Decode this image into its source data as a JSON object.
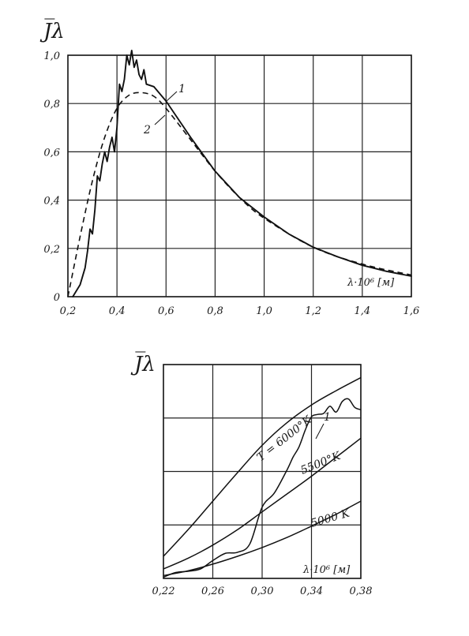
{
  "chart_data": [
    {
      "type": "line",
      "ylabel": "J̅λ",
      "xlabel": "λ·10⁶ [м]",
      "xlim": [
        0.2,
        1.6
      ],
      "ylim": [
        0,
        1.0
      ],
      "x_ticks": [
        "0,2",
        "0,4",
        "0,6",
        "0,8",
        "1,0",
        "1,2",
        "1,4",
        "1,6"
      ],
      "y_ticks": [
        "0",
        "0,2",
        "0,4",
        "0,6",
        "0,8",
        "1,0"
      ],
      "grid": true,
      "series": [
        {
          "name": "1",
          "style": "solid",
          "points": [
            [
              0.22,
              0.0
            ],
            [
              0.25,
              0.05
            ],
            [
              0.27,
              0.12
            ],
            [
              0.28,
              0.19
            ],
            [
              0.29,
              0.28
            ],
            [
              0.3,
              0.26
            ],
            [
              0.31,
              0.36
            ],
            [
              0.32,
              0.5
            ],
            [
              0.33,
              0.48
            ],
            [
              0.34,
              0.55
            ],
            [
              0.35,
              0.6
            ],
            [
              0.36,
              0.56
            ],
            [
              0.37,
              0.62
            ],
            [
              0.38,
              0.66
            ],
            [
              0.39,
              0.6
            ],
            [
              0.4,
              0.7
            ],
            [
              0.41,
              0.88
            ],
            [
              0.42,
              0.85
            ],
            [
              0.43,
              0.9
            ],
            [
              0.44,
              1.0
            ],
            [
              0.45,
              0.96
            ],
            [
              0.46,
              1.02
            ],
            [
              0.47,
              0.95
            ],
            [
              0.48,
              0.98
            ],
            [
              0.49,
              0.92
            ],
            [
              0.5,
              0.9
            ],
            [
              0.51,
              0.94
            ],
            [
              0.52,
              0.88
            ],
            [
              0.55,
              0.87
            ],
            [
              0.6,
              0.81
            ],
            [
              0.7,
              0.66
            ],
            [
              0.8,
              0.52
            ],
            [
              0.9,
              0.41
            ],
            [
              1.0,
              0.33
            ],
            [
              1.1,
              0.26
            ],
            [
              1.2,
              0.205
            ],
            [
              1.3,
              0.165
            ],
            [
              1.4,
              0.13
            ],
            [
              1.5,
              0.105
            ],
            [
              1.6,
              0.085
            ]
          ]
        },
        {
          "name": "2",
          "style": "dashed",
          "points": [
            [
              0.2,
              0.0
            ],
            [
              0.25,
              0.25
            ],
            [
              0.3,
              0.48
            ],
            [
              0.35,
              0.66
            ],
            [
              0.4,
              0.78
            ],
            [
              0.45,
              0.835
            ],
            [
              0.5,
              0.845
            ],
            [
              0.55,
              0.83
            ],
            [
              0.6,
              0.78
            ],
            [
              0.7,
              0.65
            ],
            [
              0.8,
              0.52
            ],
            [
              0.9,
              0.41
            ],
            [
              1.0,
              0.325
            ],
            [
              1.2,
              0.205
            ],
            [
              1.4,
              0.135
            ],
            [
              1.6,
              0.09
            ]
          ]
        }
      ]
    },
    {
      "type": "line",
      "ylabel": "J̅λ",
      "xlabel": "λ·10⁶ [м]",
      "xlim": [
        0.22,
        0.38
      ],
      "x_ticks": [
        "0,22",
        "0,26",
        "0,30",
        "0,34",
        "0,38"
      ],
      "grid": true,
      "series": [
        {
          "name": "T = 6000°K",
          "points": [
            [
              0.22,
              0.93
            ],
            [
              0.24,
              2.05
            ],
            [
              0.26,
              3.25
            ],
            [
              0.28,
              4.45
            ],
            [
              0.3,
              5.6
            ],
            [
              0.32,
              6.55
            ],
            [
              0.34,
              7.3
            ],
            [
              0.36,
              7.9
            ],
            [
              0.38,
              8.45
            ]
          ]
        },
        {
          "name": "5500°K",
          "points": [
            [
              0.22,
              0.4
            ],
            [
              0.24,
              0.85
            ],
            [
              0.26,
              1.4
            ],
            [
              0.28,
              2.05
            ],
            [
              0.3,
              2.8
            ],
            [
              0.32,
              3.55
            ],
            [
              0.34,
              4.3
            ],
            [
              0.36,
              5.1
            ],
            [
              0.38,
              5.9
            ]
          ]
        },
        {
          "name": "5000 K",
          "points": [
            [
              0.22,
              0.12
            ],
            [
              0.24,
              0.32
            ],
            [
              0.26,
              0.6
            ],
            [
              0.28,
              0.93
            ],
            [
              0.3,
              1.3
            ],
            [
              0.32,
              1.72
            ],
            [
              0.34,
              2.2
            ],
            [
              0.36,
              2.7
            ],
            [
              0.38,
              3.25
            ]
          ]
        },
        {
          "name": "1",
          "points": [
            [
              0.22,
              0.05
            ],
            [
              0.23,
              0.25
            ],
            [
              0.24,
              0.3
            ],
            [
              0.25,
              0.4
            ],
            [
              0.26,
              0.75
            ],
            [
              0.27,
              1.05
            ],
            [
              0.28,
              1.1
            ],
            [
              0.29,
              1.45
            ],
            [
              0.3,
              3.0
            ],
            [
              0.31,
              3.6
            ],
            [
              0.32,
              4.55
            ],
            [
              0.325,
              5.1
            ],
            [
              0.33,
              5.55
            ],
            [
              0.335,
              6.25
            ],
            [
              0.34,
              6.8
            ],
            [
              0.345,
              6.9
            ],
            [
              0.35,
              6.95
            ],
            [
              0.355,
              7.25
            ],
            [
              0.36,
              7.0
            ],
            [
              0.365,
              7.45
            ],
            [
              0.37,
              7.55
            ],
            [
              0.375,
              7.2
            ],
            [
              0.38,
              7.1
            ]
          ]
        }
      ]
    }
  ]
}
